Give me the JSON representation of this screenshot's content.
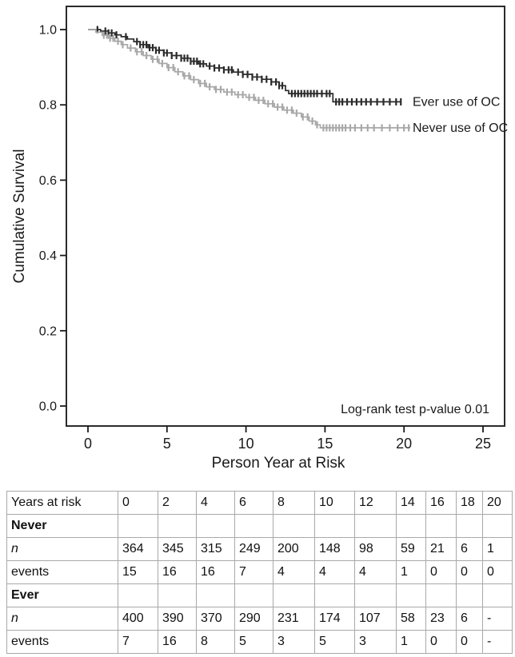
{
  "chart_data": {
    "type": "line",
    "subtype": "kaplan-meier-step",
    "title": "",
    "xlabel": "Person Year at Risk",
    "ylabel": "Cumulative Survival",
    "annotation": "Log-rank test p-value 0.01",
    "x_ticks": [
      "0",
      "5",
      "10",
      "15",
      "20",
      "25"
    ],
    "y_ticks": [
      "1.0",
      "0.8",
      "0.6",
      "0.4",
      "0.2",
      "0.0"
    ],
    "xlim": [
      0,
      26.4
    ],
    "ylim": [
      0,
      1.0
    ],
    "grid": false,
    "legend_position": "right-of-curve-end",
    "frame_color": "#2b2b2b",
    "series": [
      {
        "name": "Ever use of OC",
        "color": "#2b2b2b",
        "label_color": "#1c1c1c",
        "points": [
          [
            0,
            1.0
          ],
          [
            0.8,
            0.996
          ],
          [
            1.3,
            0.991
          ],
          [
            1.7,
            0.986
          ],
          [
            2.1,
            0.981
          ],
          [
            2.5,
            0.975
          ],
          [
            2.9,
            0.968
          ],
          [
            3.3,
            0.96
          ],
          [
            3.8,
            0.952
          ],
          [
            4.3,
            0.945
          ],
          [
            4.8,
            0.938
          ],
          [
            5.3,
            0.931
          ],
          [
            5.9,
            0.924
          ],
          [
            6.5,
            0.916
          ],
          [
            7.0,
            0.909
          ],
          [
            7.5,
            0.903
          ],
          [
            8.0,
            0.898
          ],
          [
            8.6,
            0.893
          ],
          [
            9.2,
            0.887
          ],
          [
            9.8,
            0.881
          ],
          [
            10.4,
            0.874
          ],
          [
            11.0,
            0.868
          ],
          [
            11.6,
            0.861
          ],
          [
            12.1,
            0.851
          ],
          [
            12.5,
            0.838
          ],
          [
            12.7,
            0.83
          ],
          [
            15.5,
            0.808
          ],
          [
            19.8,
            0.808
          ]
        ],
        "censor_x": [
          0.6,
          1.1,
          1.3,
          1.5,
          1.8,
          2.4,
          3.1,
          3.3,
          3.5,
          3.7,
          3.9,
          4.1,
          4.3,
          4.5,
          4.8,
          5.0,
          5.3,
          5.6,
          5.9,
          6.1,
          6.3,
          6.5,
          6.7,
          6.9,
          7.1,
          7.3,
          7.7,
          8.0,
          8.3,
          8.6,
          8.9,
          9.1,
          9.5,
          9.8,
          10.1,
          10.4,
          10.7,
          11.0,
          11.3,
          11.6,
          11.9,
          12.1,
          12.3,
          12.9,
          13.1,
          13.3,
          13.5,
          13.7,
          13.9,
          14.1,
          14.3,
          14.5,
          14.8,
          15.1,
          15.3,
          15.7,
          15.9,
          16.1,
          16.4,
          16.7,
          17.0,
          17.3,
          17.6,
          17.9,
          18.3,
          18.7,
          19.1,
          19.5,
          19.8
        ]
      },
      {
        "name": "Never use of OC",
        "color": "#a8a8a8",
        "label_color": "#a2a2a2",
        "points": [
          [
            0,
            1.0
          ],
          [
            0.5,
            0.993
          ],
          [
            0.9,
            0.985
          ],
          [
            1.3,
            0.977
          ],
          [
            1.7,
            0.969
          ],
          [
            2.1,
            0.96
          ],
          [
            2.5,
            0.951
          ],
          [
            3.0,
            0.941
          ],
          [
            3.5,
            0.931
          ],
          [
            4.0,
            0.921
          ],
          [
            4.5,
            0.91
          ],
          [
            5.0,
            0.899
          ],
          [
            5.5,
            0.888
          ],
          [
            6.0,
            0.877
          ],
          [
            6.5,
            0.867
          ],
          [
            7.0,
            0.857
          ],
          [
            7.5,
            0.848
          ],
          [
            8.0,
            0.841
          ],
          [
            8.6,
            0.834
          ],
          [
            9.3,
            0.827
          ],
          [
            10.0,
            0.82
          ],
          [
            10.6,
            0.812
          ],
          [
            11.2,
            0.803
          ],
          [
            11.8,
            0.794
          ],
          [
            12.4,
            0.786
          ],
          [
            13.0,
            0.778
          ],
          [
            13.5,
            0.768
          ],
          [
            14.0,
            0.757
          ],
          [
            14.4,
            0.747
          ],
          [
            14.7,
            0.739
          ],
          [
            20.4,
            0.739
          ]
        ],
        "censor_x": [
          1.0,
          1.2,
          1.4,
          1.6,
          1.9,
          2.2,
          2.7,
          3.1,
          3.4,
          3.7,
          4.1,
          4.4,
          4.7,
          5.1,
          5.4,
          5.7,
          6.1,
          6.4,
          6.7,
          7.1,
          7.4,
          7.7,
          8.1,
          8.4,
          8.8,
          9.1,
          9.5,
          9.8,
          10.2,
          10.5,
          10.8,
          11.1,
          11.4,
          11.7,
          12.0,
          12.3,
          12.6,
          12.9,
          13.2,
          13.6,
          13.9,
          14.2,
          14.5,
          14.9,
          15.1,
          15.3,
          15.5,
          15.7,
          15.9,
          16.1,
          16.3,
          16.6,
          16.9,
          17.3,
          17.7,
          18.1,
          18.6,
          19.1,
          19.6,
          20.0,
          20.3
        ]
      }
    ]
  },
  "risk_table": {
    "rows": [
      {
        "label": "Years at risk",
        "style": "normal",
        "values": [
          "0",
          "2",
          "4",
          "6",
          "8",
          "10",
          "12",
          "14",
          "16",
          "18",
          "20"
        ]
      },
      {
        "label": "Never",
        "style": "bold",
        "values": [
          "",
          "",
          "",
          "",
          "",
          "",
          "",
          "",
          "",
          "",
          ""
        ]
      },
      {
        "label": "n",
        "style": "italic",
        "values": [
          "364",
          "345",
          "315",
          "249",
          "200",
          "148",
          "98",
          "59",
          "21",
          "6",
          "1"
        ]
      },
      {
        "label": "events",
        "style": "normal",
        "values": [
          "15",
          "16",
          "16",
          "7",
          "4",
          "4",
          "4",
          "1",
          "0",
          "0",
          "0"
        ]
      },
      {
        "label": "Ever",
        "style": "bold",
        "values": [
          "",
          "",
          "",
          "",
          "",
          "",
          "",
          "",
          "",
          "",
          ""
        ]
      },
      {
        "label": "n",
        "style": "italic",
        "values": [
          "400",
          "390",
          "370",
          "290",
          "231",
          "174",
          "107",
          "58",
          "23",
          "6",
          "-"
        ]
      },
      {
        "label": "events",
        "style": "normal",
        "values": [
          "7",
          "16",
          "8",
          "5",
          "3",
          "5",
          "3",
          "1",
          "0",
          "0",
          "-"
        ]
      }
    ]
  }
}
